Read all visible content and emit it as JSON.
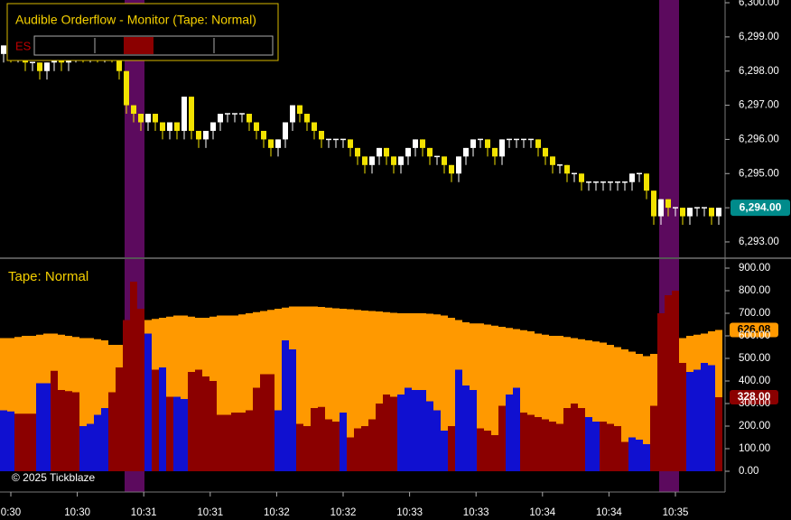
{
  "chart_data": [
    {
      "type": "candlestick",
      "title": "Audible Orderflow - Monitor (Tape: Normal)",
      "symbol": "ES",
      "x_labels": [
        "0:30",
        "10:30",
        "10:31",
        "10:31",
        "10:32",
        "10:32",
        "10:33",
        "10:33",
        "10:34",
        "10:34",
        "10:35"
      ],
      "open": [
        6298.5,
        6298.75,
        6298.5,
        6298.5,
        6298.25,
        6298.25,
        6298.0,
        6298.25,
        6298.5,
        6298.25,
        6298.5,
        6298.75,
        6298.5,
        6298.75,
        6298.5,
        6298.75,
        6298.5,
        6298.0,
        6297.0,
        6296.75,
        6296.5,
        6296.75,
        6296.5,
        6296.25,
        6296.5,
        6296.25,
        6297.25,
        6296.25,
        6296.0,
        6296.25,
        6296.5,
        6296.75,
        6296.75,
        6296.75,
        6296.75,
        6296.5,
        6296.25,
        6296.0,
        6295.75,
        6296.0,
        6296.5,
        6297.0,
        6296.75,
        6296.5,
        6296.25,
        6296.0,
        6296.0,
        6296.0,
        6296.0,
        6295.75,
        6295.5,
        6295.25,
        6295.5,
        6295.75,
        6295.5,
        6295.25,
        6295.5,
        6295.75,
        6296.0,
        6295.75,
        6295.5,
        6295.5,
        6295.25,
        6295.0,
        6295.5,
        6295.75,
        6296.0,
        6296.0,
        6295.75,
        6295.5,
        6296.0,
        6296.0,
        6296.0,
        6296.0,
        6296.0,
        6295.75,
        6295.5,
        6295.25,
        6295.25,
        6295.0,
        6295.0,
        6294.75,
        6294.75,
        6294.75,
        6294.75,
        6294.75,
        6294.75,
        6294.75,
        6295.0,
        6295.0,
        6294.5,
        6293.75,
        6294.25,
        6294.0,
        6294.0,
        6293.75,
        6294.0,
        6294.0,
        6294.0,
        6293.75
      ],
      "high": [
        6298.75,
        6298.75,
        6298.5,
        6298.5,
        6298.25,
        6298.25,
        6298.25,
        6298.5,
        6298.5,
        6298.5,
        6298.75,
        6298.75,
        6298.75,
        6298.75,
        6298.75,
        6298.75,
        6298.5,
        6298.0,
        6297.0,
        6296.75,
        6296.75,
        6296.75,
        6296.5,
        6296.5,
        6296.5,
        6297.25,
        6297.25,
        6296.25,
        6296.25,
        6296.5,
        6296.75,
        6296.75,
        6296.75,
        6296.75,
        6296.75,
        6296.5,
        6296.25,
        6296.0,
        6296.0,
        6296.5,
        6297.0,
        6297.0,
        6296.75,
        6296.5,
        6296.25,
        6296.0,
        6296.0,
        6296.0,
        6296.0,
        6295.75,
        6295.5,
        6295.5,
        6295.75,
        6295.75,
        6295.5,
        6295.5,
        6295.75,
        6296.0,
        6296.0,
        6295.75,
        6295.5,
        6295.5,
        6295.25,
        6295.5,
        6295.75,
        6296.0,
        6296.0,
        6296.0,
        6295.75,
        6296.0,
        6296.0,
        6296.0,
        6296.0,
        6296.0,
        6296.0,
        6295.75,
        6295.5,
        6295.25,
        6295.25,
        6295.0,
        6295.0,
        6294.75,
        6294.75,
        6294.75,
        6294.75,
        6294.75,
        6294.75,
        6295.0,
        6295.0,
        6295.0,
        6294.5,
        6294.25,
        6294.25,
        6294.0,
        6294.0,
        6294.0,
        6294.0,
        6294.0,
        6294.0,
        6294.0
      ],
      "low": [
        6298.25,
        6298.25,
        6298.25,
        6298.0,
        6298.0,
        6297.75,
        6297.75,
        6298.0,
        6298.0,
        6298.0,
        6298.25,
        6298.25,
        6298.25,
        6298.25,
        6298.25,
        6298.25,
        6297.75,
        6296.75,
        6296.5,
        6296.25,
        6296.25,
        6296.25,
        6296.0,
        6296.0,
        6296.0,
        6296.0,
        6296.0,
        6295.75,
        6295.75,
        6296.0,
        6296.25,
        6296.5,
        6296.5,
        6296.5,
        6296.25,
        6296.0,
        6295.75,
        6295.5,
        6295.5,
        6295.75,
        6296.25,
        6296.5,
        6296.25,
        6296.0,
        6295.75,
        6295.75,
        6295.75,
        6295.75,
        6295.5,
        6295.25,
        6295.0,
        6295.0,
        6295.25,
        6295.25,
        6295.0,
        6295.0,
        6295.25,
        6295.5,
        6295.5,
        6295.25,
        6295.25,
        6295.0,
        6294.75,
        6294.75,
        6295.25,
        6295.5,
        6295.75,
        6295.5,
        6295.25,
        6295.25,
        6295.75,
        6295.75,
        6295.75,
        6295.75,
        6295.5,
        6295.25,
        6295.0,
        6295.0,
        6294.75,
        6294.75,
        6294.5,
        6294.5,
        6294.5,
        6294.5,
        6294.5,
        6294.5,
        6294.5,
        6294.5,
        6294.75,
        6294.25,
        6293.5,
        6293.5,
        6293.75,
        6293.75,
        6293.5,
        6293.5,
        6293.75,
        6293.75,
        6293.5,
        6293.5
      ],
      "close": [
        6298.75,
        6298.5,
        6298.5,
        6298.25,
        6298.25,
        6298.0,
        6298.25,
        6298.5,
        6298.25,
        6298.5,
        6298.75,
        6298.5,
        6298.75,
        6298.5,
        6298.75,
        6298.5,
        6298.0,
        6297.0,
        6296.75,
        6296.5,
        6296.75,
        6296.5,
        6296.25,
        6296.5,
        6296.25,
        6297.25,
        6296.25,
        6296.0,
        6296.25,
        6296.5,
        6296.75,
        6296.75,
        6296.75,
        6296.75,
        6296.5,
        6296.25,
        6296.0,
        6295.75,
        6296.0,
        6296.5,
        6297.0,
        6296.75,
        6296.5,
        6296.25,
        6296.0,
        6296.0,
        6296.0,
        6296.0,
        6295.75,
        6295.5,
        6295.25,
        6295.5,
        6295.75,
        6295.5,
        6295.25,
        6295.5,
        6295.75,
        6296.0,
        6295.75,
        6295.5,
        6295.5,
        6295.25,
        6295.0,
        6295.5,
        6295.75,
        6296.0,
        6296.0,
        6295.75,
        6295.5,
        6296.0,
        6296.0,
        6296.0,
        6296.0,
        6296.0,
        6295.75,
        6295.5,
        6295.25,
        6295.25,
        6295.0,
        6295.0,
        6294.75,
        6294.75,
        6294.75,
        6294.75,
        6294.75,
        6294.75,
        6294.75,
        6295.0,
        6295.0,
        6294.5,
        6293.75,
        6294.25,
        6294.0,
        6294.0,
        6293.75,
        6294.0,
        6294.0,
        6294.0,
        6293.75,
        6294.0
      ],
      "up_color": "#ffffff",
      "down_color": "#f2e200",
      "last_price_label": "6,294.00",
      "last_price_color": "#008b8b",
      "highlights": [
        [
          17,
          19
        ],
        [
          91,
          93
        ]
      ],
      "highlight_color": "#5c0a5e",
      "ylim": [
        6292.55,
        6300.08
      ],
      "yticks": [
        {
          "value": 6293,
          "label": "6,293.00"
        },
        {
          "value": 6294,
          "label": "6,294.00"
        },
        {
          "value": 6295,
          "label": "6,295.00"
        },
        {
          "value": 6296,
          "label": "6,296.00"
        },
        {
          "value": 6297,
          "label": "6,297.00"
        },
        {
          "value": 6298,
          "label": "6,298.00"
        },
        {
          "value": 6299,
          "label": "6,299.00"
        },
        {
          "value": 6300,
          "label": "6,300.00"
        }
      ]
    },
    {
      "type": "bar",
      "title": "Tape: Normal",
      "series": [
        {
          "color": "#ff9900",
          "values": [
            590,
            590,
            595,
            600,
            600,
            605,
            610,
            610,
            605,
            600,
            595,
            590,
            590,
            585,
            580,
            560,
            560,
            580,
            640,
            660,
            670,
            675,
            680,
            685,
            690,
            690,
            685,
            680,
            680,
            685,
            690,
            690,
            690,
            695,
            700,
            705,
            710,
            715,
            720,
            725,
            730,
            730,
            730,
            730,
            728,
            725,
            722,
            720,
            718,
            715,
            712,
            710,
            708,
            705,
            702,
            700,
            700,
            700,
            700,
            698,
            695,
            690,
            680,
            670,
            660,
            655,
            655,
            650,
            645,
            640,
            635,
            630,
            625,
            620,
            610,
            605,
            600,
            600,
            595,
            590,
            585,
            580,
            575,
            570,
            560,
            550,
            540,
            530,
            520,
            510,
            520,
            540,
            560,
            580,
            590,
            600,
            605,
            610,
            620,
            626.08
          ],
          "value_labels": [
            null,
            null,
            null,
            null,
            null,
            null,
            null,
            null,
            null,
            null,
            null,
            null,
            null,
            null,
            null,
            null,
            null,
            null,
            null,
            null,
            null,
            null,
            null,
            null,
            null,
            null,
            null,
            null,
            null,
            null,
            null,
            null,
            null,
            null,
            null,
            null,
            null,
            null,
            null,
            null,
            null,
            null,
            null,
            null,
            null,
            null,
            null,
            null,
            null,
            null,
            null,
            null,
            null,
            null,
            null,
            null,
            null,
            null,
            null,
            null,
            null,
            null,
            null,
            null,
            null,
            null,
            null,
            null,
            null,
            null,
            null,
            null,
            null,
            null,
            null,
            null,
            null,
            null,
            null,
            null,
            null,
            null,
            null,
            null,
            null,
            null,
            null,
            null,
            null,
            null,
            null,
            null,
            null,
            null,
            null,
            null,
            null,
            null,
            null,
            "626.08"
          ]
        },
        {
          "color": "#1010d0",
          "values": [
            270,
            265,
            null,
            null,
            null,
            390,
            390,
            null,
            null,
            null,
            null,
            200,
            210,
            250,
            280,
            null,
            null,
            null,
            null,
            null,
            610,
            null,
            460,
            null,
            330,
            320,
            null,
            null,
            null,
            null,
            null,
            null,
            null,
            null,
            null,
            null,
            null,
            null,
            270,
            580,
            540,
            null,
            null,
            null,
            null,
            null,
            null,
            260,
            null,
            null,
            null,
            null,
            null,
            null,
            null,
            340,
            370,
            360,
            360,
            310,
            270,
            180,
            null,
            450,
            380,
            360,
            null,
            null,
            null,
            null,
            340,
            370,
            null,
            null,
            null,
            null,
            null,
            null,
            null,
            null,
            null,
            240,
            220,
            null,
            null,
            null,
            null,
            150,
            140,
            120,
            null,
            null,
            null,
            null,
            null,
            440,
            450,
            480,
            470,
            null
          ]
        },
        {
          "color": "#8b0000",
          "values": [
            null,
            null,
            255,
            255,
            255,
            null,
            null,
            445,
            360,
            355,
            350,
            null,
            null,
            null,
            null,
            350,
            460,
            670,
            840,
            720,
            null,
            450,
            null,
            330,
            null,
            null,
            440,
            450,
            420,
            400,
            250,
            250,
            260,
            260,
            270,
            370,
            430,
            430,
            null,
            null,
            null,
            210,
            200,
            280,
            285,
            230,
            220,
            null,
            150,
            190,
            200,
            230,
            300,
            340,
            330,
            null,
            null,
            null,
            null,
            null,
            null,
            null,
            200,
            null,
            null,
            null,
            190,
            180,
            160,
            290,
            null,
            null,
            260,
            250,
            240,
            230,
            220,
            210,
            280,
            300,
            280,
            null,
            null,
            220,
            210,
            200,
            130,
            null,
            null,
            null,
            290,
            700,
            780,
            800,
            480,
            null,
            null,
            null,
            null,
            328
          ],
          "value_labels": [
            null,
            null,
            null,
            null,
            null,
            null,
            null,
            null,
            null,
            null,
            null,
            null,
            null,
            null,
            null,
            null,
            null,
            null,
            null,
            null,
            null,
            null,
            null,
            null,
            null,
            null,
            null,
            null,
            null,
            null,
            null,
            null,
            null,
            null,
            null,
            null,
            null,
            null,
            null,
            null,
            null,
            null,
            null,
            null,
            null,
            null,
            null,
            null,
            null,
            null,
            null,
            null,
            null,
            null,
            null,
            null,
            null,
            null,
            null,
            null,
            null,
            null,
            null,
            null,
            null,
            null,
            null,
            null,
            null,
            null,
            null,
            null,
            null,
            null,
            null,
            null,
            null,
            null,
            null,
            null,
            null,
            null,
            null,
            null,
            null,
            null,
            null,
            null,
            null,
            null,
            null,
            null,
            null,
            null,
            null,
            null,
            null,
            null,
            null,
            "328.00"
          ]
        }
      ],
      "ylim": [
        -92,
        936
      ],
      "yticks": [
        {
          "value": 0,
          "label": "0.00"
        },
        {
          "value": 100,
          "label": "100.00"
        },
        {
          "value": 200,
          "label": "200.00"
        },
        {
          "value": 300,
          "label": "300.00"
        },
        {
          "value": 400,
          "label": "400.00"
        },
        {
          "value": 500,
          "label": "500.00"
        },
        {
          "value": 600,
          "label": "600.00"
        },
        {
          "value": 700,
          "label": "700.00"
        },
        {
          "value": 800,
          "label": "800.00"
        },
        {
          "value": 900,
          "label": "900.00"
        }
      ]
    }
  ],
  "footer": "© 2025 Tickblaze"
}
